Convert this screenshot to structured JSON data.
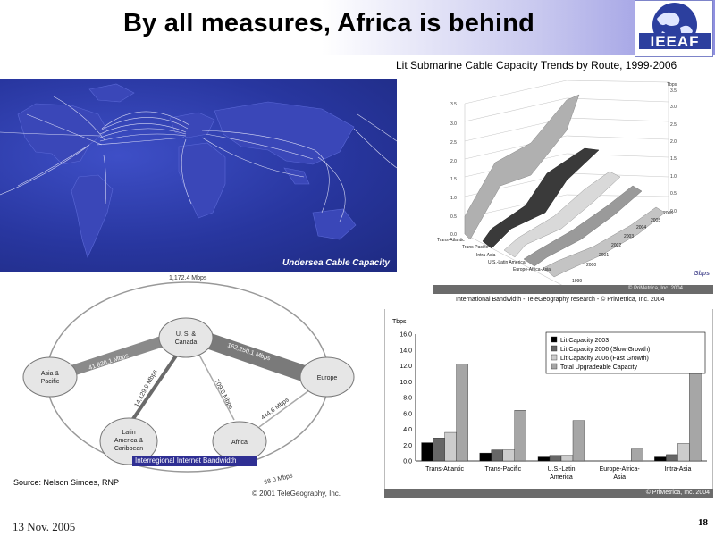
{
  "slide": {
    "title": "By all measures, Africa is behind",
    "date": "13 Nov. 2005",
    "page": "18",
    "logo_text": "IEEAF"
  },
  "map": {
    "caption": "Undersea Cable Capacity",
    "cut_text": "Gbps"
  },
  "cable_chart": {
    "title": "Lit Submarine Cable Capacity Trends by Route, 1999-2006",
    "unit": "Tbps",
    "y_ticks": [
      "0.0",
      "0.5",
      "1.0",
      "1.5",
      "2.0",
      "2.5",
      "3.0",
      "3.5"
    ],
    "routes": [
      "Trans-Atlantic",
      "Trans-Pacific",
      "Intra-Asia",
      "U.S.-Latin America",
      "Europe-Africa-Asia"
    ],
    "years": [
      "1999",
      "2000",
      "2001",
      "2002",
      "2003",
      "2004",
      "2005",
      "2006"
    ],
    "copyright": "© PriMetrica, Inc. 2004"
  },
  "bandwidth_line": {
    "text": "International Bandwidth - TeleGeography research - © PriMetrica, Inc. 2004"
  },
  "network": {
    "nodes": {
      "us": [
        "U. S. &",
        "Canada"
      ],
      "asia": [
        "Asia &",
        "Pacific"
      ],
      "europe": "Europe",
      "latam": [
        "Latin",
        "America &",
        "Caribbean"
      ],
      "africa": "Africa"
    },
    "links": {
      "top_arc": "1,172.4 Mbps",
      "asia_us": "41,820.1 Mbps",
      "us_europe": "162,250.1 Mbps",
      "us_latam": "14,129.9 Mbps",
      "us_africa": "709.8 Mbps",
      "europe_africa": "444.6 Mbps",
      "latam_europe": "68.0 Mbps"
    },
    "label_box": "Interregional Internet Bandwidth",
    "copyright": "© 2001 TeleGeography, Inc."
  },
  "source": "Source: Nelson Simoes, RNP",
  "chart_data": {
    "type": "bar",
    "ylabel": "Tbps",
    "ylim": [
      0,
      16
    ],
    "y_ticks": [
      "0.0",
      "2.0",
      "4.0",
      "6.0",
      "8.0",
      "10.0",
      "12.0",
      "14.0",
      "16.0"
    ],
    "categories": [
      [
        "Trans-Atlantic"
      ],
      [
        "Trans-Pacific"
      ],
      [
        "U.S.-Latin",
        "America"
      ],
      [
        "Europe-Africa-",
        "Asia"
      ],
      [
        "Intra-Asia"
      ]
    ],
    "series": [
      {
        "name": "Lit Capacity 2003",
        "color": "#000000",
        "values": [
          2.3,
          1.0,
          0.5,
          0.0,
          0.5
        ]
      },
      {
        "name": "Lit Capacity 2006 (Slow Growth)",
        "color": "#666666",
        "values": [
          2.9,
          1.4,
          0.7,
          0.0,
          0.8
        ]
      },
      {
        "name": "Lit Capacity 2006 (Fast Growth)",
        "color": "#cccccc",
        "values": [
          3.6,
          1.4,
          0.7,
          0.0,
          2.2
        ]
      },
      {
        "name": "Total Upgradeable Capacity",
        "color": "#a6a6a6",
        "values": [
          12.2,
          6.4,
          5.1,
          1.5,
          15.8
        ]
      }
    ],
    "legend_position": "top-right",
    "copyright": "© PriMetrica, Inc. 2004"
  }
}
